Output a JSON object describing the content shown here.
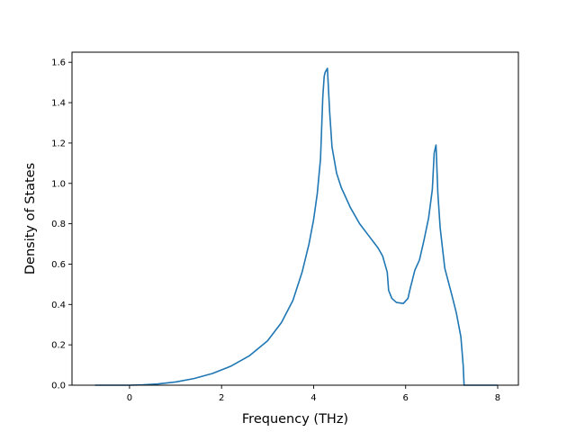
{
  "chart_data": {
    "type": "line",
    "title": "",
    "xlabel": "Frequency (THz)",
    "ylabel": "Density of States",
    "xlim": [
      -1.25,
      8.45
    ],
    "ylim": [
      0.0,
      1.65
    ],
    "xticks": [
      0,
      2,
      4,
      6,
      8
    ],
    "yticks": [
      0.0,
      0.2,
      0.4,
      0.6,
      0.8,
      1.0,
      1.2,
      1.4,
      1.6
    ],
    "xtick_labels": [
      "0",
      "2",
      "4",
      "6",
      "8"
    ],
    "ytick_labels": [
      "0.0",
      "0.2",
      "0.4",
      "0.6",
      "0.8",
      "1.0",
      "1.2",
      "1.4",
      "1.6"
    ],
    "grid": false,
    "legend": "none",
    "line_color": "#1f77b4",
    "series": [
      {
        "points": [
          [
            -0.75,
            0.0
          ],
          [
            0.0,
            0.0
          ],
          [
            0.3,
            0.002
          ],
          [
            0.6,
            0.006
          ],
          [
            1.0,
            0.016
          ],
          [
            1.4,
            0.033
          ],
          [
            1.8,
            0.058
          ],
          [
            2.2,
            0.094
          ],
          [
            2.6,
            0.145
          ],
          [
            3.0,
            0.22
          ],
          [
            3.3,
            0.31
          ],
          [
            3.55,
            0.42
          ],
          [
            3.75,
            0.56
          ],
          [
            3.9,
            0.7
          ],
          [
            4.0,
            0.82
          ],
          [
            4.08,
            0.95
          ],
          [
            4.15,
            1.12
          ],
          [
            4.2,
            1.43
          ],
          [
            4.23,
            1.53
          ],
          [
            4.25,
            1.55
          ],
          [
            4.3,
            1.57
          ],
          [
            4.35,
            1.35
          ],
          [
            4.4,
            1.18
          ],
          [
            4.5,
            1.05
          ],
          [
            4.6,
            0.98
          ],
          [
            4.8,
            0.88
          ],
          [
            5.0,
            0.8
          ],
          [
            5.2,
            0.74
          ],
          [
            5.4,
            0.68
          ],
          [
            5.5,
            0.64
          ],
          [
            5.55,
            0.6
          ],
          [
            5.6,
            0.56
          ],
          [
            5.63,
            0.47
          ],
          [
            5.7,
            0.43
          ],
          [
            5.8,
            0.41
          ],
          [
            5.95,
            0.405
          ],
          [
            6.05,
            0.43
          ],
          [
            6.1,
            0.48
          ],
          [
            6.2,
            0.57
          ],
          [
            6.3,
            0.62
          ],
          [
            6.4,
            0.72
          ],
          [
            6.5,
            0.83
          ],
          [
            6.58,
            0.97
          ],
          [
            6.62,
            1.15
          ],
          [
            6.66,
            1.19
          ],
          [
            6.7,
            0.95
          ],
          [
            6.75,
            0.78
          ],
          [
            6.85,
            0.58
          ],
          [
            7.0,
            0.45
          ],
          [
            7.1,
            0.36
          ],
          [
            7.2,
            0.24
          ],
          [
            7.25,
            0.1
          ],
          [
            7.27,
            0.0
          ],
          [
            7.5,
            0.0
          ],
          [
            8.0,
            0.0
          ]
        ]
      }
    ]
  }
}
